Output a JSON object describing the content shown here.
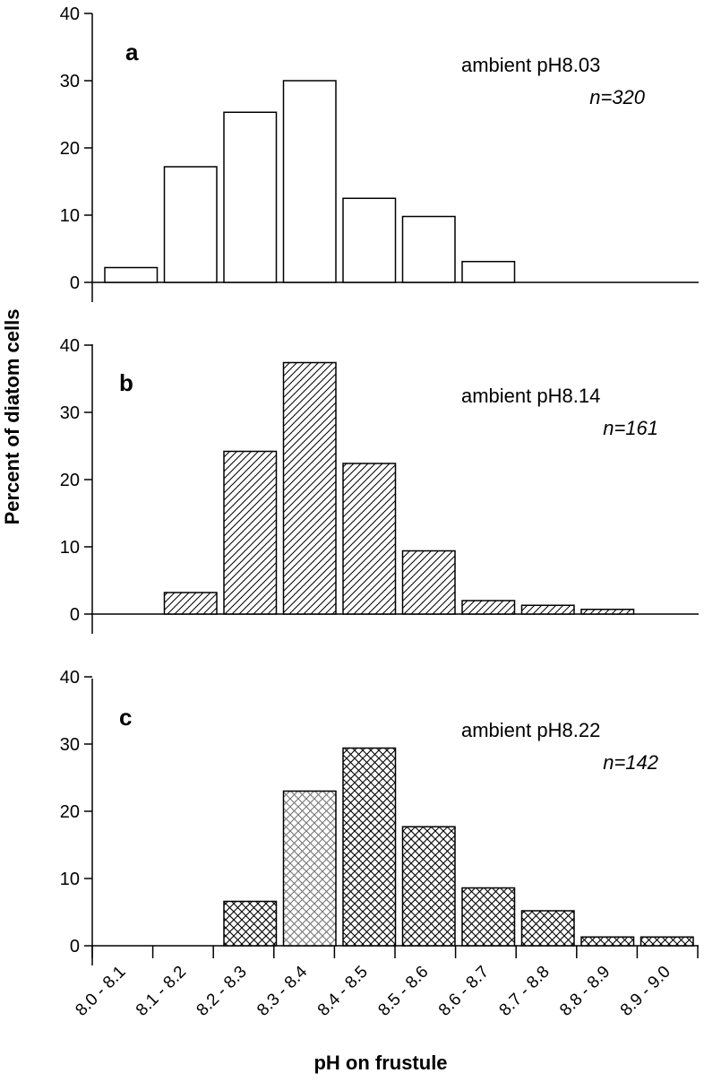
{
  "chart_data": {
    "type": "bar",
    "xlabel": "pH on frustule",
    "ylabel": "Percent of diatom cells",
    "categories": [
      "8.0 - 8.1",
      "8.1 - 8.2",
      "8.2 - 8.3",
      "8.3 - 8.4",
      "8.4 - 8.5",
      "8.5 - 8.6",
      "8.6 - 8.7",
      "8.7 - 8.8",
      "8.8 - 8.9",
      "8.9 - 9.0"
    ],
    "ylim": [
      0,
      40
    ],
    "yticks": [
      "0",
      "10",
      "20",
      "30",
      "40"
    ],
    "grid": false,
    "panels": [
      {
        "letter": "a",
        "ambient": "ambient pH8.03",
        "n": "n=320",
        "pattern": "none",
        "values": [
          2.2,
          17.2,
          25.3,
          30.0,
          12.5,
          9.8,
          3.1,
          null,
          null,
          null
        ]
      },
      {
        "letter": "b",
        "ambient": "ambient pH8.14",
        "n": "n=161",
        "pattern": "diagonal hatch",
        "values": [
          null,
          3.2,
          24.2,
          37.4,
          22.4,
          9.4,
          2.0,
          1.3,
          0.7,
          null
        ]
      },
      {
        "letter": "c",
        "ambient": "ambient pH8.22",
        "n": "n=142",
        "pattern": "crosshatch",
        "highlight_category": "8.3 - 8.4",
        "values": [
          null,
          null,
          6.6,
          23.0,
          29.4,
          17.7,
          8.6,
          5.2,
          1.3,
          1.3
        ]
      }
    ]
  }
}
